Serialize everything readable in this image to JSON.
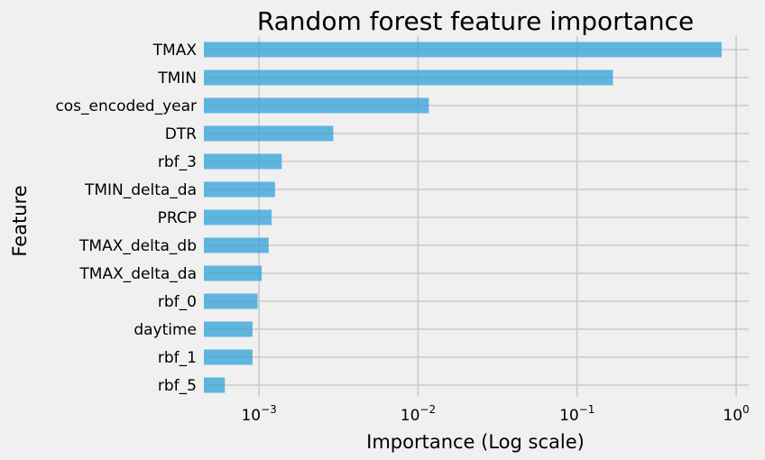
{
  "chart_data": {
    "type": "bar",
    "orientation": "horizontal",
    "title": "Random forest feature importance",
    "xlabel": "Importance (Log scale)",
    "ylabel": "Feature",
    "xscale": "log",
    "xlim": [
      0.00045,
      1.2
    ],
    "xticks": [
      {
        "value": 0.001,
        "base": "10",
        "exp": "−3"
      },
      {
        "value": 0.01,
        "base": "10",
        "exp": "−2"
      },
      {
        "value": 0.1,
        "base": "10",
        "exp": "−1"
      },
      {
        "value": 1,
        "base": "10",
        "exp": "0"
      }
    ],
    "grid": true,
    "bar_color": "#30a2da",
    "categories": [
      "TMAX",
      "TMIN",
      "cos_encoded_year",
      "DTR",
      "rbf_3",
      "TMIN_delta_da",
      "PRCP",
      "TMAX_delta_db",
      "TMAX_delta_da",
      "rbf_0",
      "daytime",
      "rbf_1",
      "rbf_5"
    ],
    "values": [
      0.81,
      0.168,
      0.0117,
      0.00293,
      0.00139,
      0.00126,
      0.0012,
      0.00115,
      0.00104,
      0.00098,
      0.00091,
      0.00091,
      0.00061
    ]
  }
}
